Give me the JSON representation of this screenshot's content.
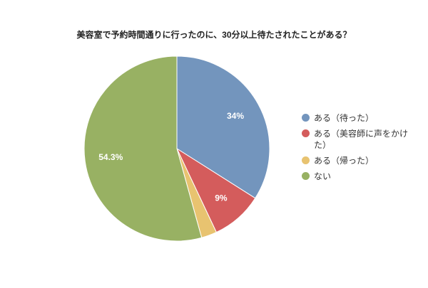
{
  "chart_data": {
    "type": "pie",
    "title": "美容室で予約時間通りに行ったのに、30分以上待たされたことがある？",
    "categories": [
      "ある（待った）",
      "ある（美容師に声をかけた）",
      "ある（帰った）",
      "ない"
    ],
    "values": [
      34,
      9,
      2.7,
      54.3
    ],
    "value_labels": [
      "34%",
      "9%",
      null,
      "54.3%"
    ],
    "colors": [
      "#7395bd",
      "#d45c5c",
      "#e8c370",
      "#98b163"
    ]
  }
}
